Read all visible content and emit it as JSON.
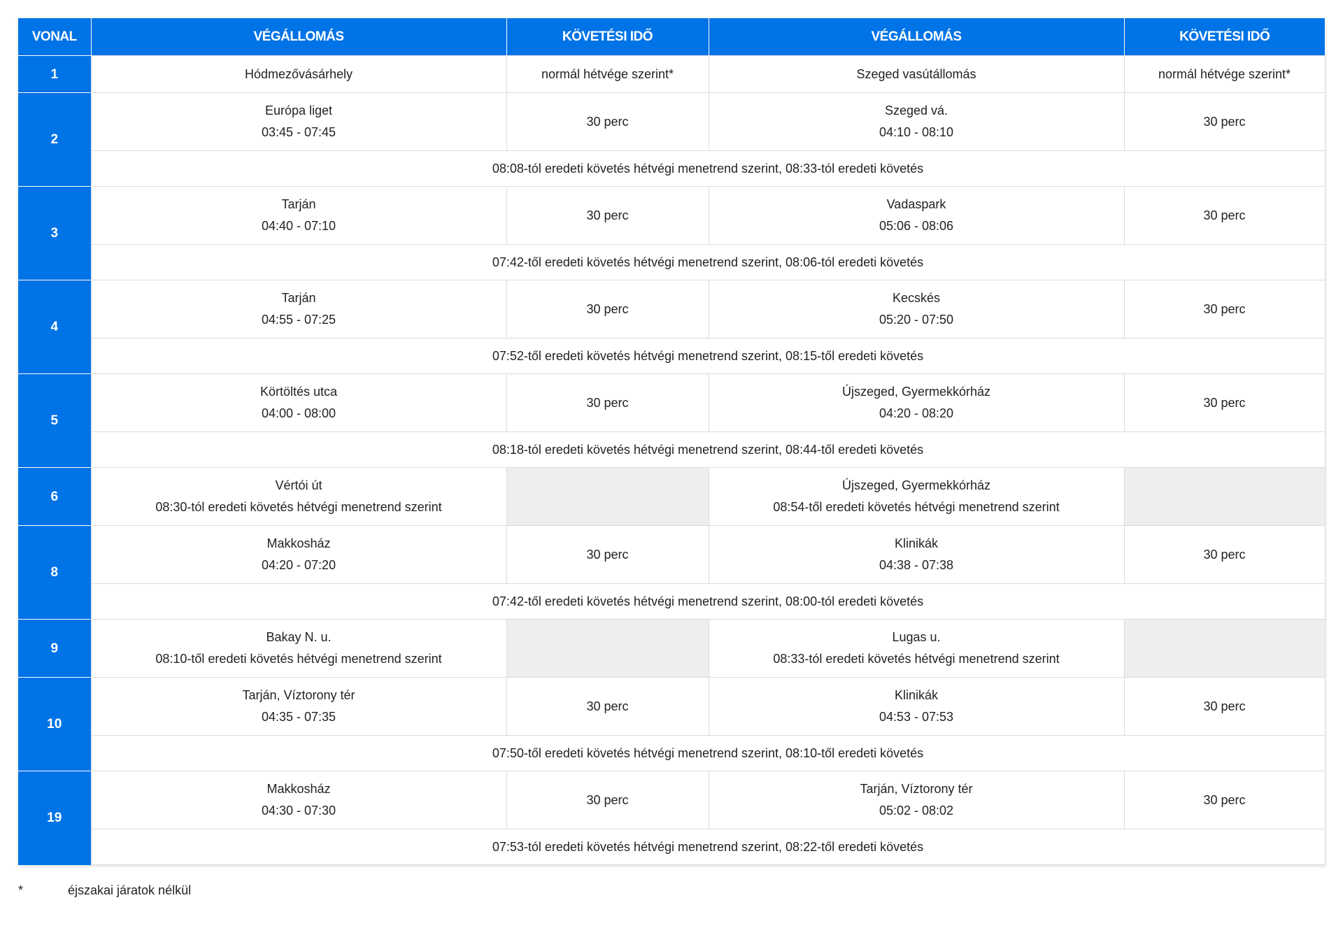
{
  "headers": [
    "VONAL",
    "VÉGÁLLOMÁS",
    "KÖVETÉSI IDŐ",
    "VÉGÁLLOMÁS",
    "KÖVETÉSI IDŐ"
  ],
  "colors": {
    "header_bg": "#0073e6",
    "empty_cell": "#eeeeee"
  },
  "rows": [
    {
      "line": "1",
      "a_stop": "Hódmezővásárhely",
      "a_time": "",
      "a_interval": "normál hétvége szerint*",
      "b_stop": "Szeged vasútállomás",
      "b_time": "",
      "b_interval": "normál hétvége szerint*",
      "note": ""
    },
    {
      "line": "2",
      "a_stop": "Európa liget",
      "a_time": "03:45 - 07:45",
      "a_interval": "30 perc",
      "b_stop": "Szeged vá.",
      "b_time": "04:10 - 08:10",
      "b_interval": "30 perc",
      "note": "08:08-tól eredeti követés hétvégi menetrend szerint, 08:33-tól eredeti követés"
    },
    {
      "line": "3",
      "a_stop": "Tarján",
      "a_time": "04:40 - 07:10",
      "a_interval": "30 perc",
      "b_stop": "Vadaspark",
      "b_time": "05:06 - 08:06",
      "b_interval": "30 perc",
      "note": "07:42-től eredeti követés hétvégi menetrend szerint, 08:06-tól eredeti követés"
    },
    {
      "line": "4",
      "a_stop": "Tarján",
      "a_time": "04:55 - 07:25",
      "a_interval": "30 perc",
      "b_stop": "Kecskés",
      "b_time": "05:20 - 07:50",
      "b_interval": "30 perc",
      "note": "07:52-től eredeti követés hétvégi menetrend szerint, 08:15-től eredeti követés"
    },
    {
      "line": "5",
      "a_stop": "Körtöltés utca",
      "a_time": "04:00 - 08:00",
      "a_interval": "30 perc",
      "b_stop": "Újszeged, Gyermekkórház",
      "b_time": "04:20 - 08:20",
      "b_interval": "30 perc",
      "note": "08:18-tól eredeti követés hétvégi menetrend szerint, 08:44-től eredeti követés"
    },
    {
      "line": "6",
      "a_stop": "Vértói út",
      "a_time": "08:30-tól eredeti követés hétvégi menetrend szerint",
      "a_interval": "",
      "b_stop": "Újszeged, Gyermekkórház",
      "b_time": "08:54-től eredeti követés hétvégi menetrend szerint",
      "b_interval": "",
      "note": ""
    },
    {
      "line": "8",
      "a_stop": "Makkosház",
      "a_time": "04:20 - 07:20",
      "a_interval": "30 perc",
      "b_stop": "Klinikák",
      "b_time": "04:38 - 07:38",
      "b_interval": "30 perc",
      "note": "07:42-től eredeti követés hétvégi menetrend szerint, 08:00-tól eredeti követés"
    },
    {
      "line": "9",
      "a_stop": "Bakay N. u.",
      "a_time": "08:10-től eredeti követés hétvégi menetrend szerint",
      "a_interval": "",
      "b_stop": "Lugas u.",
      "b_time": "08:33-tól eredeti követés hétvégi menetrend szerint",
      "b_interval": "",
      "note": ""
    },
    {
      "line": "10",
      "a_stop": "Tarján, Víztorony tér",
      "a_time": "04:35 - 07:35",
      "a_interval": "30 perc",
      "b_stop": "Klinikák",
      "b_time": "04:53 - 07:53",
      "b_interval": "30 perc",
      "note": "07:50-től eredeti követés hétvégi menetrend szerint, 08:10-től eredeti követés"
    },
    {
      "line": "19",
      "a_stop": "Makkosház",
      "a_time": "04:30 - 07:30",
      "a_interval": "30 perc",
      "b_stop": "Tarján, Víztorony tér",
      "b_time": "05:02 - 08:02",
      "b_interval": "30 perc",
      "note": "07:53-tól eredeti követés hétvégi menetrend szerint, 08:22-től eredeti követés"
    }
  ],
  "footnote": {
    "mark": "*",
    "text": "éjszakai járatok nélkül"
  }
}
